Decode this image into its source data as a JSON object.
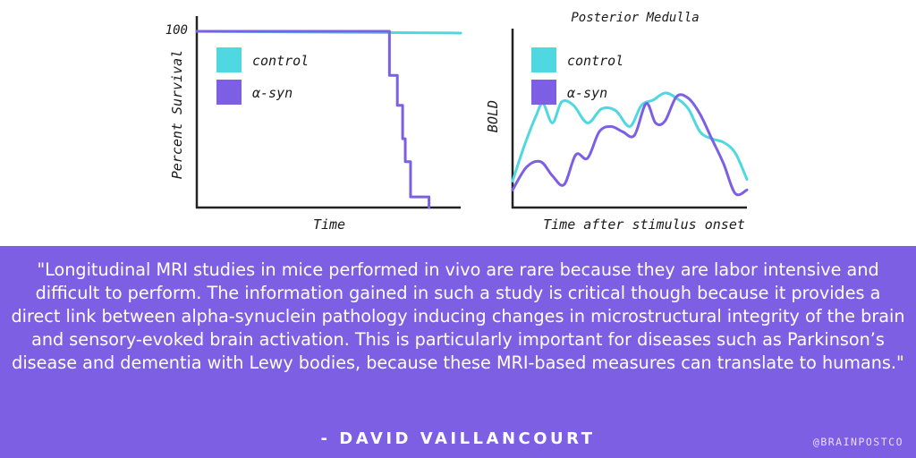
{
  "chart_data": [
    {
      "type": "line",
      "title": "",
      "xlabel": "Time",
      "ylabel": "Percent Survival",
      "y_tick_labels": [
        "100"
      ],
      "ylim": [
        0,
        100
      ],
      "xlim": [
        0,
        10
      ],
      "legend_position": "top-left",
      "grid": false,
      "series": [
        {
          "name": "control",
          "color": "#4fd8e0",
          "step": false,
          "x": [
            0,
            10
          ],
          "y": [
            100,
            99
          ]
        },
        {
          "name": "α-syn",
          "color": "#7d5fe3",
          "step": true,
          "x": [
            0,
            7.2,
            7.3,
            7.6,
            7.8,
            7.9,
            8.1,
            8.3,
            8.8
          ],
          "y": [
            100,
            100,
            75,
            58,
            39,
            26,
            6,
            6,
            0
          ]
        }
      ]
    },
    {
      "type": "line",
      "title": "Posterior Medulla",
      "xlabel": "Time after stimulus onset",
      "ylabel": "BOLD",
      "xlim": [
        0,
        10
      ],
      "ylim": [
        0,
        10
      ],
      "legend_position": "top-left",
      "grid": false,
      "series": [
        {
          "name": "control",
          "color": "#4fd8e0",
          "x": [
            0,
            0.5,
            1,
            1.3,
            1.7,
            2.1,
            2.6,
            3.2,
            3.8,
            4.4,
            5,
            5.5,
            6,
            6.5,
            7,
            7.5,
            8,
            8.5,
            9,
            9.5,
            10
          ],
          "y": [
            1.5,
            3.5,
            5.2,
            5.9,
            4.8,
            6.0,
            5.8,
            4.8,
            5.6,
            5.5,
            4.6,
            5.8,
            6.1,
            6.5,
            6.2,
            5.6,
            4.3,
            3.9,
            3.7,
            3.1,
            1.6
          ]
        },
        {
          "name": "α-syn",
          "color": "#7d5fe3",
          "x": [
            0,
            0.6,
            1.2,
            1.7,
            2.2,
            2.7,
            3.2,
            3.7,
            4.2,
            4.7,
            5.2,
            5.7,
            6.1,
            6.5,
            7,
            7.5,
            8,
            8.5,
            9,
            9.5,
            10
          ],
          "y": [
            1.0,
            2.3,
            2.6,
            1.8,
            1.3,
            3.0,
            2.8,
            4.3,
            4.6,
            4.3,
            4.1,
            5.9,
            4.8,
            4.9,
            6.3,
            6.2,
            5.3,
            3.9,
            2.5,
            0.8,
            1.0
          ]
        }
      ]
    }
  ],
  "quote": {
    "text": "\"Longitudinal MRI studies in mice performed in vivo are rare because they are labor intensive and difficult to perform.  The information gained in such a study is critical though because it provides a direct link between alpha-synuclein pathology inducing changes in microstructural integrity of the brain and sensory-evoked brain activation.  This is particularly important for diseases such as Parkinson’s disease and dementia with Lewy bodies, because these MRI-based measures can translate to humans.\"",
    "attribution": "- DAVID VAILLANCOURT",
    "background_color": "#7d5fe3"
  },
  "handle": "@BRAINPOSTCO"
}
